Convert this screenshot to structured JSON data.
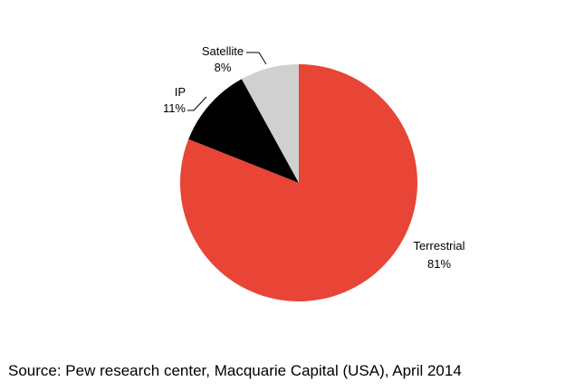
{
  "chart_data": {
    "type": "pie",
    "title": "",
    "start": "12 o'clock",
    "direction": "clockwise",
    "slices": [
      {
        "label": "Terrestrial",
        "value": 81,
        "value_label": "81%",
        "color": "#E84536"
      },
      {
        "label": "IP",
        "value": 11,
        "value_label": "11%",
        "color": "#000000"
      },
      {
        "label": "Satellite",
        "value": 8,
        "value_label": "8%",
        "color": "#D0D0D0"
      }
    ]
  },
  "source": "Source: Pew research center, Macquarie Capital (USA), April 2014"
}
